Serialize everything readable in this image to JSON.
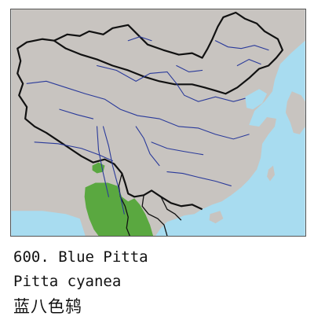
{
  "species": {
    "number": "600.",
    "common_name": "Blue Pitta",
    "scientific_name": "Pitta cyanea",
    "chinese_name": "蓝八色鸫"
  },
  "map": {
    "colors": {
      "land": "#c8c4c0",
      "sea": "#a8dcf0",
      "river": "#2a3a9a",
      "border": "#111111",
      "range": "#5aa840"
    }
  }
}
